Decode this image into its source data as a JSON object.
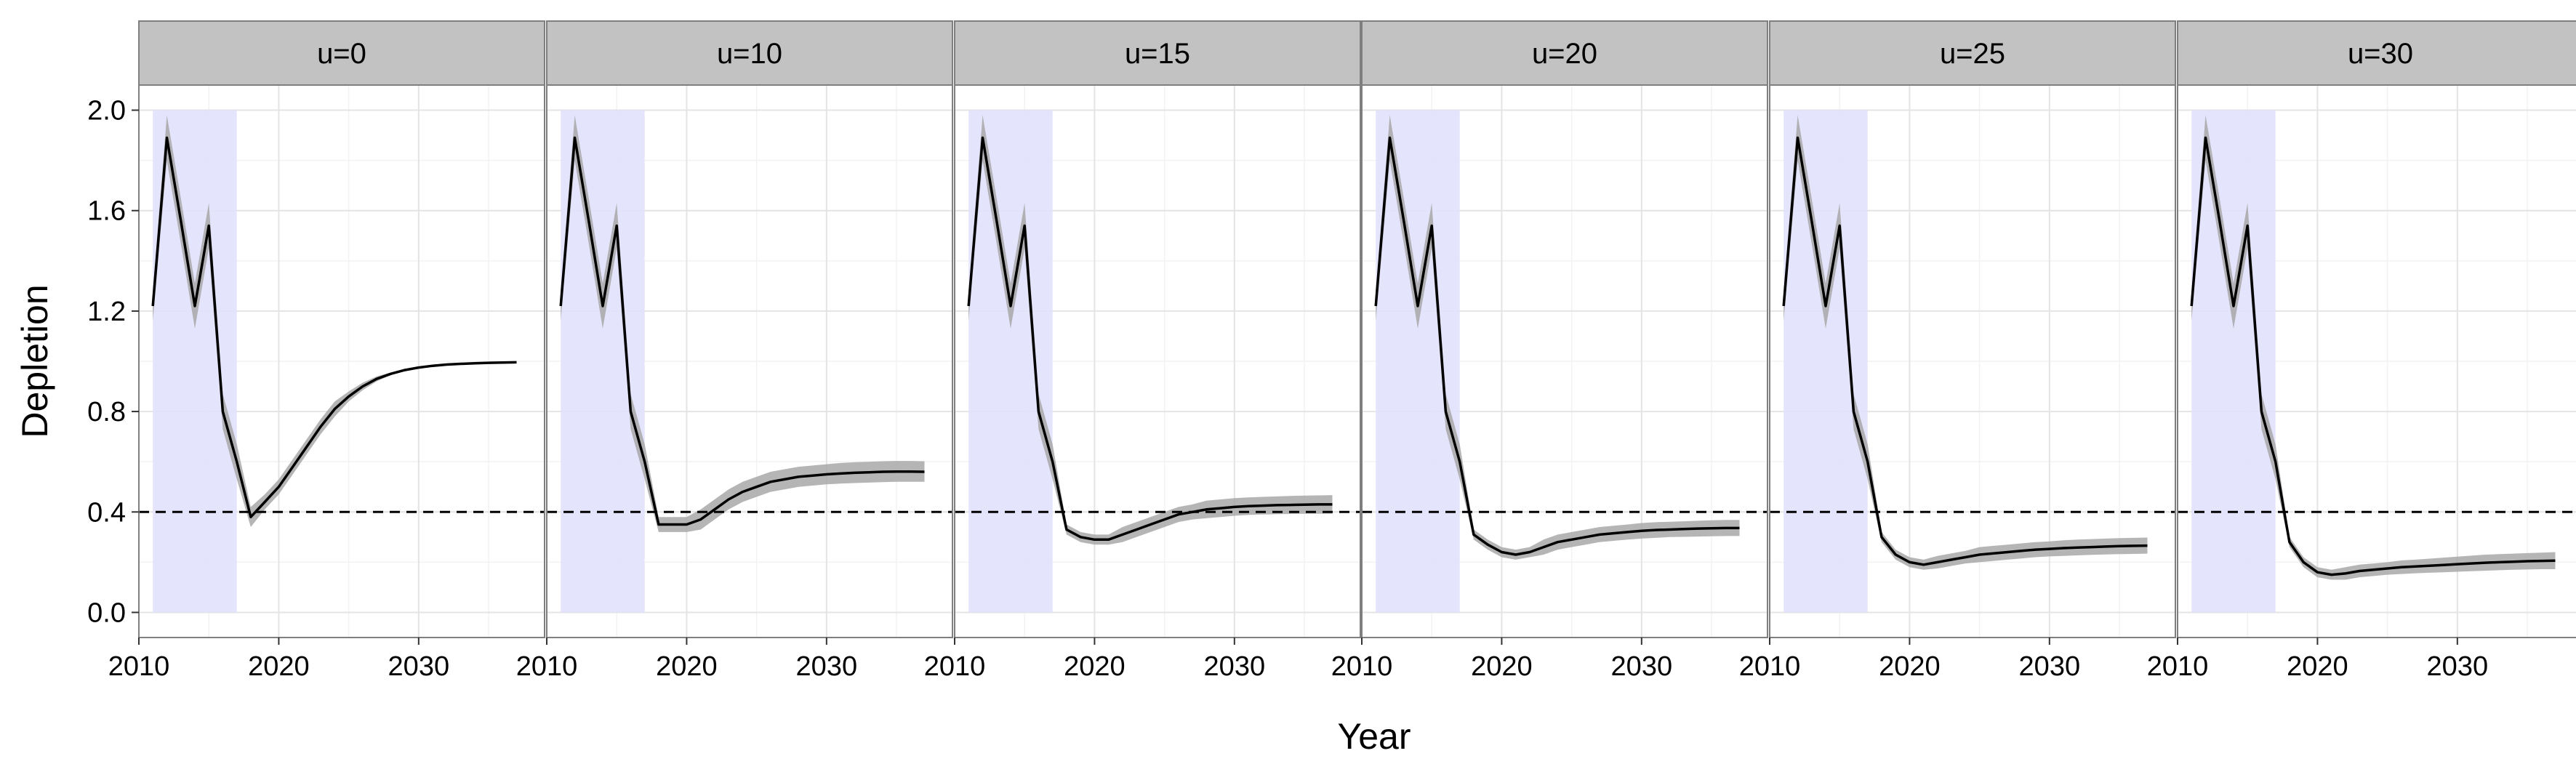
{
  "chart_data": {
    "type": "line",
    "xlabel": "Year",
    "ylabel": "Depletion",
    "xlim": [
      2010,
      2039
    ],
    "ylim": [
      -0.1,
      2.1
    ],
    "x_ticks": [
      2010,
      2020,
      2030
    ],
    "y_ticks": [
      0.0,
      0.4,
      0.8,
      1.2,
      1.6,
      2.0
    ],
    "y_tick_labels": [
      "0.0",
      "0.4",
      "0.8",
      "1.2",
      "1.6",
      "2.0"
    ],
    "reference_line": {
      "y": 0.4,
      "style": "dashed"
    },
    "shaded_region": {
      "x": [
        2011,
        2017
      ],
      "y": [
        0,
        2.0
      ],
      "color": "#e1e1fc"
    },
    "ribbon_color": "#a8a8a8",
    "line_color": "#000000",
    "panels": [
      {
        "label": "u=0",
        "x": [
          2011,
          2012,
          2013,
          2014,
          2015,
          2016,
          2017,
          2018,
          2019,
          2020,
          2021,
          2022,
          2023,
          2024,
          2025,
          2026,
          2027,
          2028,
          2029,
          2030,
          2031,
          2032,
          2033,
          2034,
          2035,
          2036,
          2037
        ],
        "y": [
          1.22,
          1.89,
          1.56,
          1.22,
          1.54,
          0.8,
          0.6,
          0.38,
          0.44,
          0.5,
          0.58,
          0.66,
          0.74,
          0.81,
          0.86,
          0.9,
          0.93,
          0.95,
          0.965,
          0.975,
          0.982,
          0.987,
          0.99,
          0.992,
          0.994,
          0.995,
          0.996
        ],
        "lower": [
          1.16,
          1.8,
          1.47,
          1.13,
          1.45,
          0.73,
          0.53,
          0.34,
          0.41,
          0.47,
          0.55,
          0.63,
          0.71,
          0.78,
          0.84,
          0.885,
          0.92,
          0.945,
          0.96,
          0.972,
          0.98,
          0.986,
          0.989,
          0.991,
          0.993,
          0.994,
          0.995
        ],
        "upper": [
          1.28,
          1.98,
          1.65,
          1.31,
          1.63,
          0.87,
          0.67,
          0.42,
          0.47,
          0.53,
          0.61,
          0.69,
          0.77,
          0.84,
          0.88,
          0.915,
          0.94,
          0.955,
          0.97,
          0.978,
          0.984,
          0.988,
          0.991,
          0.993,
          0.995,
          0.996,
          0.997
        ]
      },
      {
        "label": "u=10",
        "x": [
          2011,
          2012,
          2013,
          2014,
          2015,
          2016,
          2017,
          2018,
          2019,
          2020,
          2021,
          2022,
          2023,
          2024,
          2025,
          2026,
          2027,
          2028,
          2029,
          2030,
          2031,
          2032,
          2033,
          2034,
          2035,
          2036,
          2037
        ],
        "y": [
          1.22,
          1.89,
          1.56,
          1.22,
          1.54,
          0.8,
          0.6,
          0.35,
          0.35,
          0.35,
          0.37,
          0.41,
          0.45,
          0.48,
          0.5,
          0.52,
          0.53,
          0.54,
          0.545,
          0.55,
          0.553,
          0.556,
          0.558,
          0.56,
          0.561,
          0.561,
          0.56
        ],
        "lower": [
          1.16,
          1.8,
          1.47,
          1.13,
          1.45,
          0.73,
          0.53,
          0.32,
          0.32,
          0.32,
          0.33,
          0.37,
          0.41,
          0.44,
          0.46,
          0.48,
          0.49,
          0.5,
          0.505,
          0.51,
          0.513,
          0.515,
          0.517,
          0.519,
          0.52,
          0.52,
          0.52
        ],
        "upper": [
          1.28,
          1.98,
          1.65,
          1.31,
          1.63,
          0.87,
          0.67,
          0.38,
          0.38,
          0.38,
          0.41,
          0.45,
          0.49,
          0.52,
          0.54,
          0.56,
          0.57,
          0.58,
          0.585,
          0.59,
          0.595,
          0.598,
          0.6,
          0.602,
          0.603,
          0.603,
          0.602
        ]
      },
      {
        "label": "u=15",
        "x": [
          2011,
          2012,
          2013,
          2014,
          2015,
          2016,
          2017,
          2018,
          2019,
          2020,
          2021,
          2022,
          2023,
          2024,
          2025,
          2026,
          2027,
          2028,
          2029,
          2030,
          2031,
          2032,
          2033,
          2034,
          2035,
          2036,
          2037
        ],
        "y": [
          1.22,
          1.89,
          1.56,
          1.22,
          1.54,
          0.8,
          0.6,
          0.33,
          0.3,
          0.29,
          0.29,
          0.31,
          0.33,
          0.35,
          0.37,
          0.39,
          0.4,
          0.41,
          0.415,
          0.42,
          0.423,
          0.425,
          0.427,
          0.428,
          0.429,
          0.43,
          0.43
        ],
        "lower": [
          1.16,
          1.8,
          1.47,
          1.13,
          1.45,
          0.73,
          0.53,
          0.31,
          0.28,
          0.27,
          0.27,
          0.28,
          0.3,
          0.32,
          0.34,
          0.36,
          0.37,
          0.375,
          0.38,
          0.385,
          0.388,
          0.39,
          0.391,
          0.392,
          0.393,
          0.393,
          0.393
        ],
        "upper": [
          1.28,
          1.98,
          1.65,
          1.31,
          1.63,
          0.87,
          0.67,
          0.35,
          0.32,
          0.31,
          0.31,
          0.34,
          0.36,
          0.38,
          0.4,
          0.42,
          0.43,
          0.445,
          0.45,
          0.455,
          0.458,
          0.46,
          0.462,
          0.464,
          0.465,
          0.466,
          0.467
        ]
      },
      {
        "label": "u=20",
        "x": [
          2011,
          2012,
          2013,
          2014,
          2015,
          2016,
          2017,
          2018,
          2019,
          2020,
          2021,
          2022,
          2023,
          2024,
          2025,
          2026,
          2027,
          2028,
          2029,
          2030,
          2031,
          2032,
          2033,
          2034,
          2035,
          2036,
          2037
        ],
        "y": [
          1.22,
          1.89,
          1.56,
          1.22,
          1.54,
          0.8,
          0.6,
          0.31,
          0.27,
          0.24,
          0.23,
          0.24,
          0.26,
          0.28,
          0.29,
          0.3,
          0.31,
          0.315,
          0.32,
          0.325,
          0.328,
          0.33,
          0.332,
          0.334,
          0.335,
          0.336,
          0.336
        ],
        "lower": [
          1.16,
          1.8,
          1.47,
          1.13,
          1.45,
          0.73,
          0.53,
          0.29,
          0.25,
          0.22,
          0.21,
          0.22,
          0.23,
          0.25,
          0.26,
          0.27,
          0.28,
          0.285,
          0.29,
          0.294,
          0.297,
          0.3,
          0.301,
          0.302,
          0.303,
          0.304,
          0.304
        ],
        "upper": [
          1.28,
          1.98,
          1.65,
          1.31,
          1.63,
          0.87,
          0.67,
          0.33,
          0.29,
          0.26,
          0.25,
          0.26,
          0.29,
          0.31,
          0.32,
          0.33,
          0.34,
          0.345,
          0.35,
          0.356,
          0.359,
          0.361,
          0.363,
          0.365,
          0.367,
          0.368,
          0.368
        ]
      },
      {
        "label": "u=25",
        "x": [
          2011,
          2012,
          2013,
          2014,
          2015,
          2016,
          2017,
          2018,
          2019,
          2020,
          2021,
          2022,
          2023,
          2024,
          2025,
          2026,
          2027,
          2028,
          2029,
          2030,
          2031,
          2032,
          2033,
          2034,
          2035,
          2036,
          2037
        ],
        "y": [
          1.22,
          1.89,
          1.56,
          1.22,
          1.54,
          0.8,
          0.6,
          0.3,
          0.23,
          0.2,
          0.19,
          0.2,
          0.21,
          0.22,
          0.23,
          0.235,
          0.24,
          0.245,
          0.25,
          0.253,
          0.256,
          0.258,
          0.26,
          0.262,
          0.264,
          0.265,
          0.266
        ],
        "lower": [
          1.16,
          1.8,
          1.47,
          1.13,
          1.45,
          0.73,
          0.53,
          0.28,
          0.21,
          0.18,
          0.17,
          0.175,
          0.185,
          0.195,
          0.2,
          0.205,
          0.21,
          0.215,
          0.22,
          0.223,
          0.225,
          0.227,
          0.229,
          0.231,
          0.232,
          0.233,
          0.234
        ],
        "upper": [
          1.28,
          1.98,
          1.65,
          1.31,
          1.63,
          0.87,
          0.67,
          0.32,
          0.25,
          0.22,
          0.21,
          0.225,
          0.235,
          0.245,
          0.26,
          0.265,
          0.27,
          0.275,
          0.28,
          0.283,
          0.287,
          0.29,
          0.292,
          0.294,
          0.296,
          0.297,
          0.298
        ]
      },
      {
        "label": "u=30",
        "x": [
          2011,
          2012,
          2013,
          2014,
          2015,
          2016,
          2017,
          2018,
          2019,
          2020,
          2021,
          2022,
          2023,
          2024,
          2025,
          2026,
          2027,
          2028,
          2029,
          2030,
          2031,
          2032,
          2033,
          2034,
          2035,
          2036,
          2037
        ],
        "y": [
          1.22,
          1.89,
          1.56,
          1.22,
          1.54,
          0.8,
          0.6,
          0.28,
          0.2,
          0.16,
          0.15,
          0.155,
          0.165,
          0.17,
          0.175,
          0.18,
          0.183,
          0.186,
          0.189,
          0.192,
          0.195,
          0.198,
          0.2,
          0.202,
          0.204,
          0.205,
          0.206
        ],
        "lower": [
          1.16,
          1.8,
          1.47,
          1.13,
          1.45,
          0.73,
          0.53,
          0.26,
          0.18,
          0.14,
          0.13,
          0.13,
          0.14,
          0.145,
          0.15,
          0.153,
          0.156,
          0.158,
          0.16,
          0.162,
          0.164,
          0.166,
          0.168,
          0.17,
          0.171,
          0.172,
          0.172
        ],
        "upper": [
          1.28,
          1.98,
          1.65,
          1.31,
          1.63,
          0.87,
          0.67,
          0.3,
          0.22,
          0.18,
          0.17,
          0.18,
          0.19,
          0.195,
          0.2,
          0.207,
          0.21,
          0.214,
          0.218,
          0.222,
          0.226,
          0.23,
          0.232,
          0.234,
          0.236,
          0.238,
          0.24
        ]
      }
    ]
  }
}
